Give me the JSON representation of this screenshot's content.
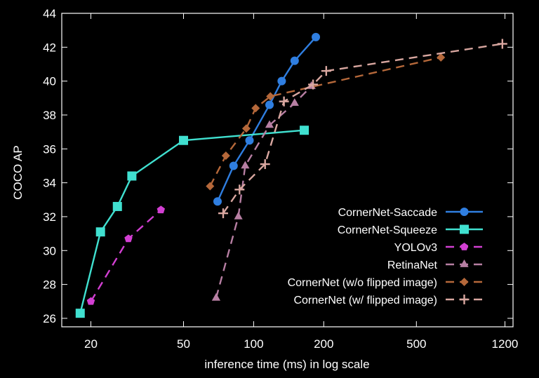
{
  "chart_data": {
    "type": "line",
    "title": "",
    "xlabel": "inference time (ms) in log scale",
    "ylabel": "COCO AP",
    "x_scale": "log",
    "xlim": [
      15,
      1300
    ],
    "ylim": [
      25.5,
      44
    ],
    "x_ticks": [
      20,
      50,
      100,
      200,
      500,
      1200
    ],
    "y_ticks": [
      26,
      28,
      30,
      32,
      34,
      36,
      38,
      40,
      42,
      44
    ],
    "grid": false,
    "legend_position": "bottom-right",
    "series": [
      {
        "name": "CornerNet-Saccade",
        "color": "#2f7ee0",
        "line": "solid",
        "marker": "circle",
        "x": [
          70,
          82,
          96,
          117,
          132,
          150,
          185
        ],
        "y": [
          32.9,
          35.0,
          36.5,
          38.6,
          40.0,
          41.2,
          42.6
        ]
      },
      {
        "name": "CornerNet-Squeeze",
        "color": "#40e0d0",
        "line": "solid",
        "marker": "square",
        "x": [
          18,
          22,
          26,
          30,
          50,
          165
        ],
        "y": [
          26.3,
          31.1,
          32.6,
          34.4,
          36.5,
          37.1
        ]
      },
      {
        "name": "YOLOv3",
        "color": "#d23fd2",
        "line": "dashed",
        "marker": "pentagon",
        "x": [
          20,
          29,
          40
        ],
        "y": [
          27.0,
          30.7,
          32.4
        ]
      },
      {
        "name": "RetinaNet",
        "color": "#b77fa3",
        "line": "dashed",
        "marker": "triangle",
        "x": [
          69,
          86,
          92,
          117,
          150,
          177
        ],
        "y": [
          27.2,
          32.0,
          35.0,
          37.4,
          38.7,
          39.7
        ]
      },
      {
        "name": "CornerNet (w/o flipped image)",
        "color": "#b5683a",
        "line": "dashed",
        "marker": "diamond",
        "x": [
          65,
          76,
          93,
          102,
          118,
          637
        ],
        "y": [
          33.8,
          35.6,
          37.2,
          38.4,
          39.1,
          41.4
        ]
      },
      {
        "name": "CornerNet (w/ flipped image)",
        "color": "#d9a7a0",
        "line": "dashed",
        "marker": "plus",
        "x": [
          74,
          87,
          112,
          135,
          180,
          205,
          1170
        ],
        "y": [
          32.2,
          33.6,
          35.1,
          38.8,
          39.8,
          40.6,
          42.2
        ]
      }
    ]
  }
}
